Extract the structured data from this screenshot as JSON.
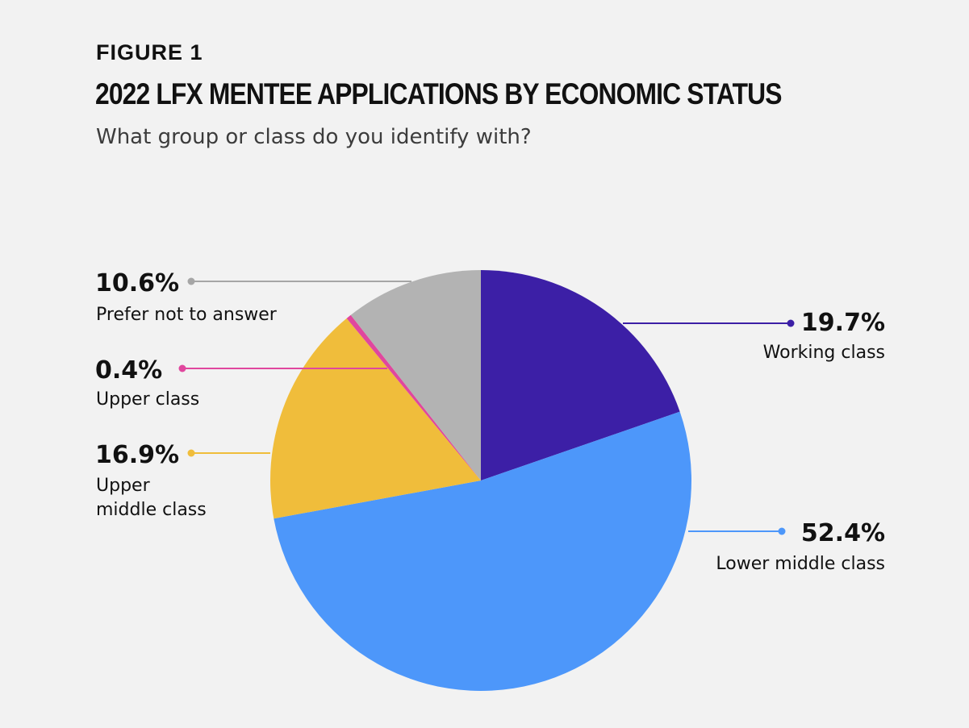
{
  "header": {
    "figure_label": "FIGURE 1",
    "title": "2022 LFX MENTEE APPLICATIONS BY ECONOMIC STATUS",
    "subtitle": "What group or class do you identify with?"
  },
  "chart_data": {
    "type": "pie",
    "title": "2022 LFX MENTEE APPLICATIONS BY ECONOMIC STATUS",
    "subtitle": "What group or class do you identify with?",
    "start_angle_deg": 0,
    "direction": "clockwise",
    "slices": [
      {
        "label": "Working class",
        "label_lines": [
          "Working class"
        ],
        "value": 19.7,
        "value_label": "19.7%",
        "color": "#3c1fa6"
      },
      {
        "label": "Lower middle class",
        "label_lines": [
          "Lower middle class"
        ],
        "value": 52.4,
        "value_label": "52.4%",
        "color": "#4d97fa"
      },
      {
        "label": "Upper middle class",
        "label_lines": [
          "Upper",
          "middle class"
        ],
        "value": 16.9,
        "value_label": "16.9%",
        "color": "#f0bd3b"
      },
      {
        "label": "Upper class",
        "label_lines": [
          "Upper class"
        ],
        "value": 0.4,
        "value_label": "0.4%",
        "color": "#e0479e"
      },
      {
        "label": "Prefer not to answer",
        "label_lines": [
          "Prefer not to answer"
        ],
        "value": 10.6,
        "value_label": "10.6%",
        "color": "#b3b3b3"
      }
    ],
    "leader_line_colors": {
      "Prefer not to answer": "#a6a6a6"
    }
  }
}
